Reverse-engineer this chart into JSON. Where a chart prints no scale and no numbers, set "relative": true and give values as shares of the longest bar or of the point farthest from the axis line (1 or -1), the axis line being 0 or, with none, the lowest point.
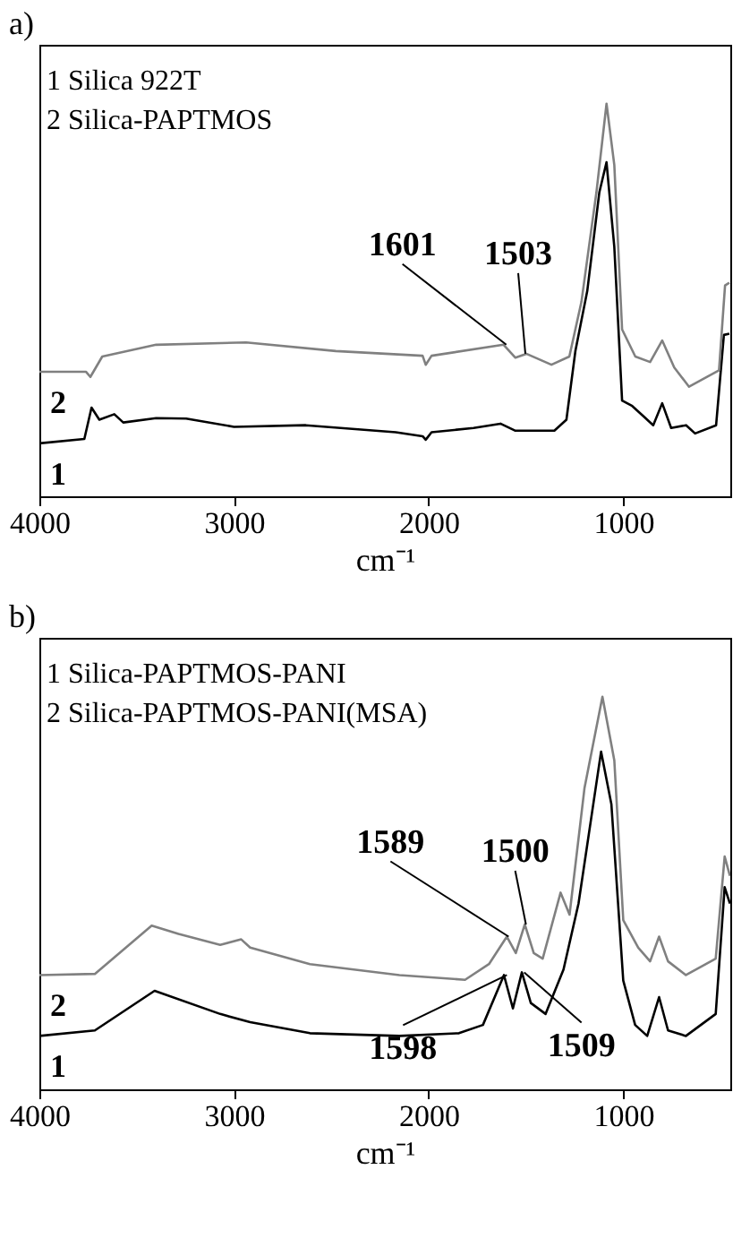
{
  "chart_data": [
    {
      "type": "line",
      "title": "a)",
      "xlabel": "cm⁻¹",
      "xlim": [
        4000,
        450
      ],
      "xticks": [
        4000,
        3000,
        2000,
        1000
      ],
      "relative": true,
      "legend": false,
      "series": [
        {
          "name": "1",
          "color": "#000000",
          "x": [
            4000,
            3769,
            3732,
            3692,
            3615,
            3569,
            3400,
            3246,
            3000,
            2631,
            2169,
            2031,
            2015,
            1985,
            1769,
            1631,
            1554,
            1354,
            1292,
            1246,
            1185,
            1123,
            1086,
            1046,
            1006,
            954,
            892,
            846,
            800,
            754,
            677,
            631,
            523,
            483,
            455
          ],
          "values": [
            0.135,
            0.146,
            0.226,
            0.195,
            0.209,
            0.188,
            0.199,
            0.198,
            0.177,
            0.181,
            0.163,
            0.153,
            0.144,
            0.163,
            0.174,
            0.185,
            0.167,
            0.167,
            0.195,
            0.37,
            0.523,
            0.774,
            0.851,
            0.635,
            0.244,
            0.23,
            0.202,
            0.181,
            0.237,
            0.174,
            0.181,
            0.16,
            0.181,
            0.411,
            0.414
          ]
        },
        {
          "name": "2",
          "color": "#808080",
          "x": [
            4000,
            3760,
            3738,
            3677,
            3400,
            2938,
            2477,
            2031,
            2015,
            1985,
            1615,
            1554,
            1498,
            1369,
            1277,
            1215,
            1138,
            1086,
            1046,
            1006,
            938,
            862,
            800,
            738,
            662,
            508,
            477,
            455
          ],
          "values": [
            0.317,
            0.317,
            0.304,
            0.356,
            0.386,
            0.392,
            0.37,
            0.358,
            0.335,
            0.358,
            0.386,
            0.353,
            0.363,
            0.335,
            0.356,
            0.495,
            0.774,
            1.0,
            0.844,
            0.425,
            0.356,
            0.342,
            0.397,
            0.328,
            0.279,
            0.321,
            0.537,
            0.544
          ]
        }
      ],
      "annotations": [
        "1 Silica 922T",
        "2 Silica-PAPTMOS",
        {
          "text": "1601",
          "x": 1601,
          "y": 0.386
        },
        {
          "text": "1503",
          "x": 1503,
          "y": 0.363
        }
      ]
    },
    {
      "type": "line",
      "title": "b)",
      "xlabel": "cm⁻¹",
      "xlim": [
        4000,
        450
      ],
      "xticks": [
        4000,
        3000,
        2000,
        1000
      ],
      "relative": true,
      "legend": false,
      "series": [
        {
          "name": "1",
          "color": "#000000",
          "x": [
            4000,
            3715,
            3408,
            3071,
            2917,
            2610,
            2150,
            1844,
            1721,
            1613,
            1567,
            1521,
            1475,
            1399,
            1307,
            1230,
            1114,
            1061,
            1000,
            939,
            877,
            816,
            770,
            678,
            525,
            479,
            452
          ],
          "values": [
            0.136,
            0.15,
            0.251,
            0.192,
            0.171,
            0.143,
            0.136,
            0.143,
            0.164,
            0.291,
            0.206,
            0.298,
            0.22,
            0.192,
            0.305,
            0.473,
            0.86,
            0.726,
            0.277,
            0.164,
            0.136,
            0.235,
            0.15,
            0.136,
            0.192,
            0.515,
            0.473
          ]
        },
        {
          "name": "2",
          "color": "#808080",
          "x": [
            4000,
            3715,
            3423,
            3285,
            3071,
            2963,
            2917,
            2610,
            2150,
            1813,
            1690,
            1598,
            1552,
            1506,
            1460,
            1414,
            1322,
            1276,
            1199,
            1107,
            1046,
            1000,
            923,
            862,
            816,
            770,
            678,
            525,
            479,
            452
          ],
          "values": [
            0.291,
            0.294,
            0.417,
            0.396,
            0.368,
            0.382,
            0.361,
            0.319,
            0.291,
            0.279,
            0.319,
            0.389,
            0.347,
            0.42,
            0.347,
            0.333,
            0.501,
            0.445,
            0.768,
            1.0,
            0.838,
            0.431,
            0.361,
            0.326,
            0.389,
            0.326,
            0.291,
            0.333,
            0.593,
            0.544
          ]
        }
      ],
      "annotations": [
        "1 Silica-PAPTMOS-PANI",
        "2 Silica-PAPTMOS-PANI(MSA)",
        {
          "text": "1589",
          "x": 1589,
          "y": 0.389
        },
        {
          "text": "1500",
          "x": 1500,
          "y": 0.42
        },
        {
          "text": "1598",
          "x": 1598,
          "y": 0.291
        },
        {
          "text": "1509",
          "x": 1509,
          "y": 0.298
        }
      ]
    }
  ]
}
